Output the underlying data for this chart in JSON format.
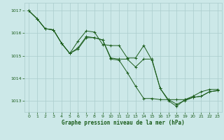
{
  "title": "Graphe pression niveau de la mer (hPa)",
  "bg_color": "#cce8e8",
  "grid_color": "#aacccc",
  "line_color": "#1a5c1a",
  "xlim": [
    -0.5,
    23.5
  ],
  "ylim": [
    1012.5,
    1017.35
  ],
  "yticks": [
    1013,
    1014,
    1015,
    1016,
    1017
  ],
  "xticks": [
    0,
    1,
    2,
    3,
    4,
    5,
    6,
    7,
    8,
    9,
    10,
    11,
    12,
    13,
    14,
    15,
    16,
    17,
    18,
    19,
    20,
    21,
    22,
    23
  ],
  "series": [
    [
      1017.0,
      1016.65,
      1016.2,
      1016.15,
      1015.55,
      1015.1,
      1015.35,
      1015.85,
      1015.8,
      1015.7,
      1014.9,
      1014.85,
      1014.85,
      1014.5,
      1014.85,
      1014.85,
      1013.55,
      1013.05,
      1012.85,
      1013.0,
      1013.15,
      1013.2,
      1013.4,
      1013.45
    ],
    [
      1017.0,
      1016.65,
      1016.2,
      1016.15,
      1015.55,
      1015.1,
      1015.3,
      1015.8,
      1015.8,
      1015.7,
      1014.85,
      1014.8,
      1014.25,
      1013.65,
      1013.1,
      1013.1,
      1013.05,
      1013.05,
      1013.05,
      1013.05,
      1013.2,
      1013.4,
      1013.5,
      1013.5
    ],
    [
      1017.0,
      1016.65,
      1016.2,
      1016.15,
      1015.55,
      1015.1,
      1015.65,
      1016.1,
      1016.05,
      1015.5,
      1015.45,
      1015.45,
      1014.9,
      1014.9,
      1015.45,
      1014.8,
      1013.55,
      1013.0,
      1012.75,
      1013.05,
      1013.15,
      1013.2,
      1013.4,
      1013.45
    ]
  ]
}
